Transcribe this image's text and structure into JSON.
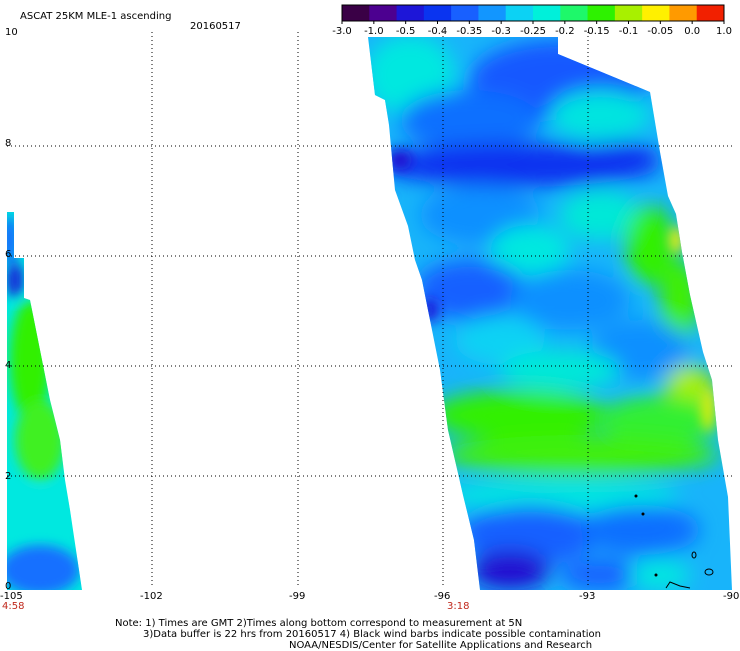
{
  "header": {
    "title": "ASCAT 25KM MLE-1 ascending",
    "date": "20160517"
  },
  "colorbar": {
    "tick_labels": [
      "-3.0",
      "-1.0",
      "-0.5",
      "-0.4",
      "-0.35",
      "-0.3",
      "-0.25",
      "-0.2",
      "-0.15",
      "-0.1",
      "-0.05",
      "0.0",
      "1.0"
    ],
    "colors": [
      "#3a0046",
      "#4c0090",
      "#1d16d8",
      "#0a34f0",
      "#1860ff",
      "#1296ff",
      "#0cd2f4",
      "#00f0da",
      "#1ef86a",
      "#2ef200",
      "#a8f000",
      "#fff000",
      "#ff9a00",
      "#f22000"
    ]
  },
  "axes": {
    "lon_labels": [
      "-105",
      "-102",
      "-99",
      "-96",
      "-93",
      "-90"
    ],
    "lat_labels": [
      "0",
      "2",
      "4",
      "6",
      "8",
      "10"
    ],
    "time_labels": [
      "4:58",
      "3:18"
    ]
  },
  "map_data": {
    "type": "swath-heatmap",
    "variable": "ASCAT 25KM MLE-1",
    "lon_range": [
      -105,
      -90
    ],
    "lat_range": [
      0,
      10
    ],
    "grid": true,
    "swaths": [
      {
        "time_label": "4:58",
        "dominant_values": "-0.35 to -0.15"
      },
      {
        "time_label": "3:18",
        "dominant_values": "-0.4 to -0.1"
      }
    ]
  },
  "notes": {
    "line1": "Note: 1) Times are GMT 2)Times along bottom correspond to measurement at 5N",
    "line2": "3)Data buffer is 22 hrs from 20160517 4) Black wind barbs indicate possible contamination",
    "line3": "NOAA/NESDIS/Center for Satellite Applications and Research"
  }
}
